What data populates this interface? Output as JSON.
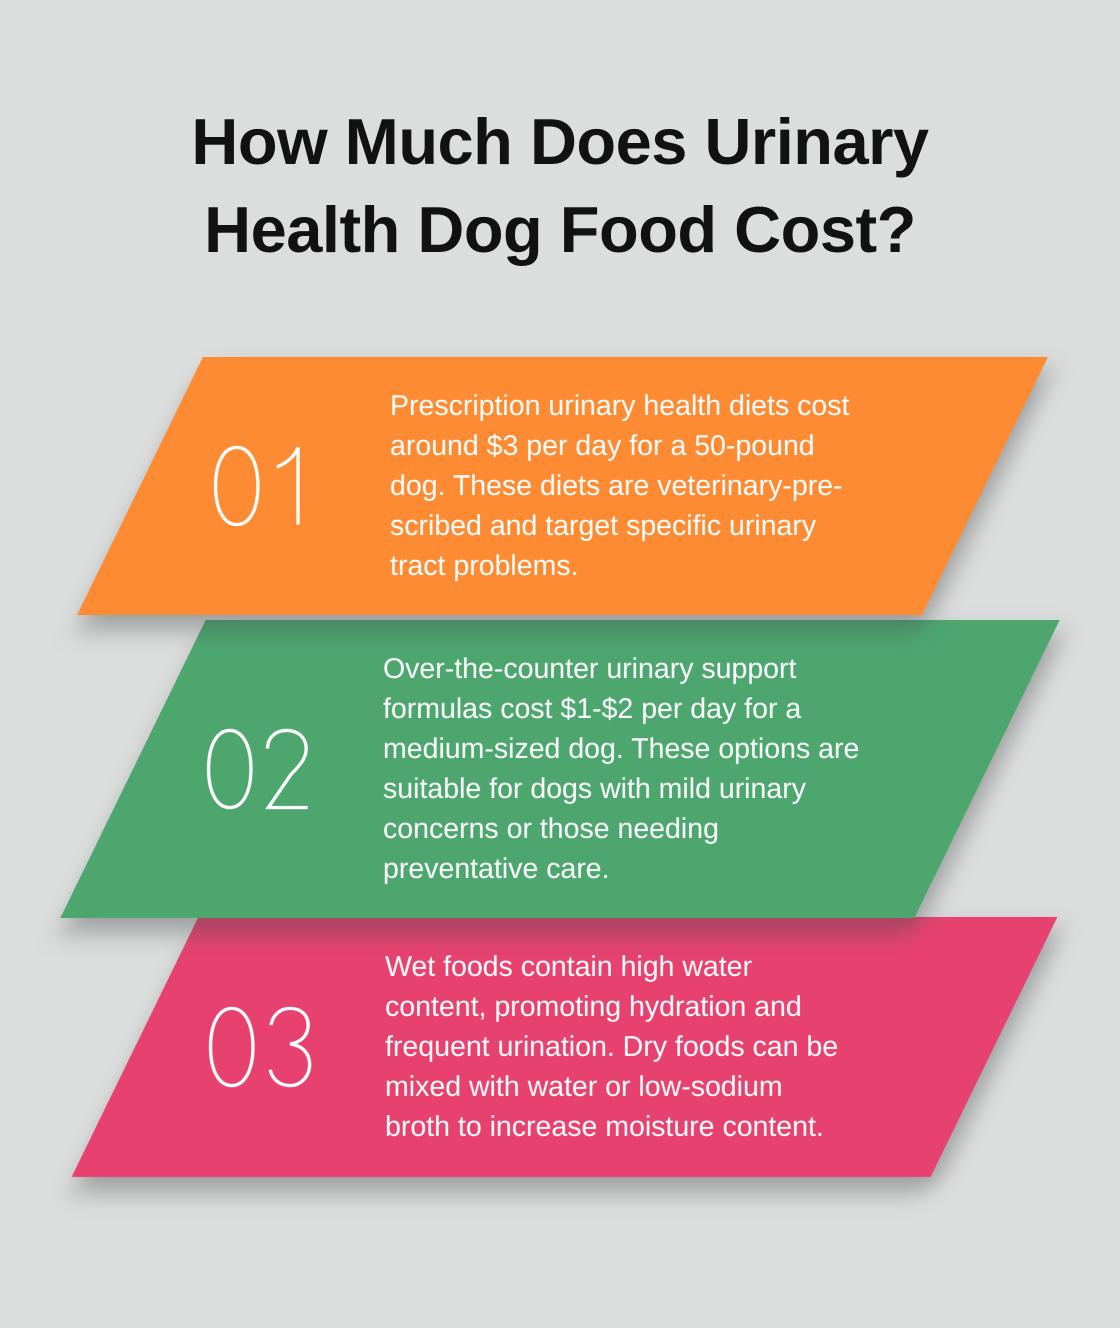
{
  "title": "How Much Does Urinary Health Dog Food Cost?",
  "colors": {
    "background": "#dcdedd",
    "title_text": "#121212",
    "step_text": "#ffffff",
    "step_number_stroke": "#ffffff"
  },
  "steps": [
    {
      "number": "01",
      "color": "#fc8b33",
      "text": "Prescription urinary health diets cost around $3 per day for a 50-pound dog. These diets are veterinary-prescribed and target specific urinary tract problems.",
      "lines": [
        "Prescription urinary health diets cost",
        "around $3 per day for a 50-pound",
        "dog. These diets are veterinary-pre-",
        "scribed and target specific urinary",
        "tract problems."
      ]
    },
    {
      "number": "02",
      "color": "#4ca66e",
      "text": "Over-the-counter urinary support formulas cost $1-$2 per day for a medium-sized dog. These options are suitable for dogs with mild urinary concerns or those needing preventative care.",
      "lines": [
        "Over-the-counter urinary support",
        "formulas cost $1-$2 per day for a",
        "medium-sized dog. These options are",
        "suitable for dogs with mild urinary",
        "concerns or those needing",
        "preventative care."
      ]
    },
    {
      "number": "03",
      "color": "#e7426f",
      "text": "Wet foods contain high water content, promoting hydration and frequent urination. Dry foods can be mixed with water or low-sodium broth to increase moisture content.",
      "lines": [
        "Wet foods contain high water",
        "content, promoting hydration and",
        "frequent urination. Dry foods can be",
        "mixed with water or low-sodium",
        "broth to increase moisture content."
      ]
    }
  ]
}
